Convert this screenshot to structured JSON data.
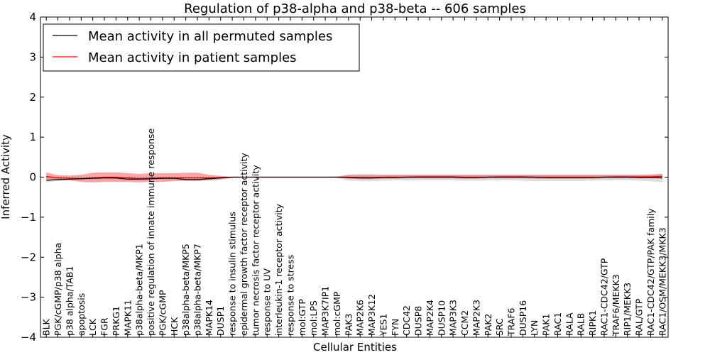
{
  "chart_data": {
    "type": "line",
    "title": "Regulation of p38-alpha and p38-beta -- 606 samples",
    "xlabel": "Cellular Entities",
    "ylabel": "Inferred Activity",
    "ylim": [
      -4,
      4
    ],
    "yticks": [
      "−4",
      "−3",
      "−2",
      "−1",
      "0",
      "1",
      "2",
      "3",
      "4"
    ],
    "legend": {
      "position": "top-left",
      "entries": [
        {
          "label": "Mean activity in all permuted samples",
          "color": "#000000"
        },
        {
          "label": "Mean activity in patient samples",
          "color": "#ff0000"
        }
      ]
    },
    "categories": [
      "BLK",
      "PGK/cGMP/p38 alpha",
      "p38 alpha/TAB1",
      "apoptosis",
      "LCK",
      "FGR",
      "PRKG1",
      "MAPK11",
      "p38alpha-beta/MKP1",
      "positive regulation of innate immune response",
      "PGK/cGMP",
      "HCK",
      "p38alpha-beta/MKP5",
      "p38alpha-beta/MKP7",
      "MAPK14",
      "DUSP1",
      "response to insulin stimulus",
      "epidermal growth factor receptor activity",
      "tumor necrosis factor receptor activity",
      "response to UV",
      "interleukin-1 receptor activity",
      "response to stress",
      "mol:GTP",
      "mol:LPS",
      "MAP3K7IP1",
      "mol:cGMP",
      "PAK3",
      "MAP2K6",
      "MAP3K12",
      "YES1",
      "FYN",
      "CDC42",
      "DUSP8",
      "MAP2K4",
      "DUSP10",
      "MAP3K3",
      "CCM2",
      "MAP2K3",
      "PAK2",
      "SRC",
      "TRAF6",
      "DUSP16",
      "LYN",
      "PAK1",
      "RAC1",
      "RALA",
      "RALB",
      "RIPK1",
      "RAC1-CDC42/GTP",
      "TRAF6/MEKK3",
      "RIP1/MEKK3",
      "RAL/GTP",
      "RAC1-CDC42/GTP/PAK family",
      "RAC1/OSM/MEKK3/MKK3"
    ],
    "series": [
      {
        "name": "Mean activity in all permuted samples",
        "color": "#000000",
        "values": [
          -0.08,
          -0.06,
          -0.05,
          -0.04,
          -0.03,
          -0.02,
          -0.02,
          -0.05,
          -0.05,
          -0.04,
          -0.03,
          -0.03,
          -0.06,
          -0.06,
          -0.04,
          -0.02,
          0,
          0,
          0,
          0,
          0,
          0,
          0,
          0,
          0,
          0,
          -0.01,
          -0.02,
          -0.02,
          -0.01,
          -0.01,
          0,
          0,
          0,
          0,
          0,
          -0.01,
          -0.01,
          0,
          0,
          0,
          0,
          0,
          -0.01,
          -0.01,
          -0.01,
          -0.01,
          -0.01,
          0,
          0,
          0,
          -0.01,
          -0.01,
          -0.02
        ],
        "band_lower": [
          -0.13,
          -0.1,
          -0.08,
          -0.07,
          -0.06,
          -0.05,
          -0.05,
          -0.08,
          -0.08,
          -0.07,
          -0.06,
          -0.06,
          -0.09,
          -0.09,
          -0.07,
          -0.04,
          -0.01,
          0,
          0,
          0,
          0,
          0,
          0,
          0,
          0,
          -0.02,
          -0.09,
          -0.1,
          -0.1,
          -0.09,
          -0.08,
          -0.08,
          -0.08,
          -0.08,
          -0.08,
          -0.08,
          -0.09,
          -0.09,
          -0.08,
          -0.08,
          -0.08,
          -0.09,
          -0.1,
          -0.1,
          -0.1,
          -0.1,
          -0.1,
          -0.09,
          -0.08,
          -0.08,
          -0.08,
          -0.09,
          -0.1,
          -0.13
        ],
        "band_upper": [
          0,
          0,
          0,
          0,
          0,
          0,
          0,
          0,
          0,
          0,
          0,
          0,
          0,
          0,
          0,
          0,
          0,
          0,
          0,
          0,
          0,
          0,
          0,
          0,
          0,
          0.02,
          0.07,
          0.08,
          0.08,
          0.07,
          0.07,
          0.07,
          0.07,
          0.07,
          0.07,
          0.07,
          0.07,
          0.07,
          0.07,
          0.07,
          0.07,
          0.07,
          0.07,
          0.07,
          0.07,
          0.07,
          0.07,
          0.07,
          0.07,
          0.07,
          0.07,
          0.07,
          0.07,
          0.08
        ]
      },
      {
        "name": "Mean activity in patient samples",
        "color": "#ff0000",
        "values": [
          0.02,
          -0.02,
          -0.03,
          -0.04,
          -0.02,
          0,
          0,
          -0.02,
          -0.04,
          -0.03,
          -0.02,
          -0.02,
          -0.02,
          -0.02,
          -0.02,
          -0.01,
          0,
          0,
          0,
          0,
          0,
          0,
          0,
          0,
          0,
          0,
          0,
          -0.01,
          -0.01,
          0,
          0,
          0,
          0.01,
          0.01,
          0.01,
          0.01,
          0,
          0,
          0,
          0.01,
          0.01,
          0.01,
          0,
          0,
          0,
          0,
          0,
          0,
          0,
          0.01,
          0.01,
          0.01,
          0.01,
          0.02
        ],
        "band_lower": [
          -0.05,
          -0.07,
          -0.08,
          -0.12,
          -0.13,
          -0.12,
          -0.12,
          -0.12,
          -0.13,
          -0.12,
          -0.12,
          -0.1,
          -0.09,
          -0.09,
          -0.08,
          -0.06,
          -0.02,
          0,
          0,
          0,
          0,
          0,
          0,
          0,
          0,
          -0.01,
          -0.04,
          -0.05,
          -0.05,
          -0.04,
          -0.04,
          -0.03,
          -0.03,
          -0.03,
          -0.03,
          -0.03,
          -0.04,
          -0.04,
          -0.03,
          -0.03,
          -0.03,
          -0.03,
          -0.04,
          -0.04,
          -0.04,
          -0.04,
          -0.04,
          -0.04,
          -0.03,
          -0.03,
          -0.03,
          -0.03,
          -0.03,
          -0.03
        ],
        "band_upper": [
          0.12,
          0.05,
          0.04,
          0.06,
          0.11,
          0.12,
          0.12,
          0.1,
          0.08,
          0.1,
          0.1,
          0.1,
          0.11,
          0.11,
          0.06,
          0.03,
          0.01,
          0,
          0,
          0,
          0,
          0,
          0,
          0,
          0,
          0.01,
          0.05,
          0.05,
          0.05,
          0.05,
          0.05,
          0.05,
          0.05,
          0.05,
          0.05,
          0.05,
          0.05,
          0.05,
          0.05,
          0.05,
          0.05,
          0.05,
          0.05,
          0.05,
          0.05,
          0.05,
          0.05,
          0.05,
          0.05,
          0.05,
          0.05,
          0.05,
          0.06,
          0.08
        ]
      }
    ]
  }
}
